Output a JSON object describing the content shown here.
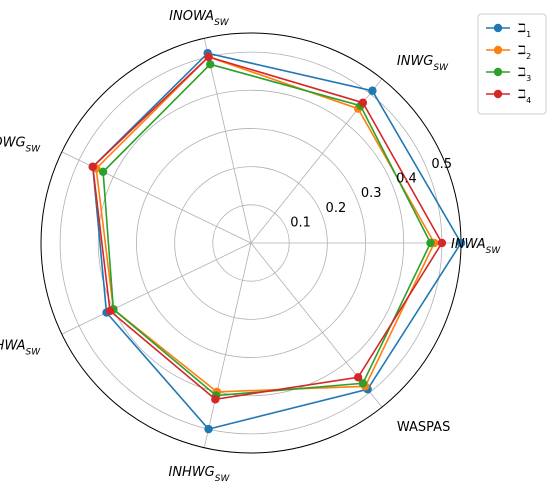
{
  "chart_data": {
    "type": "radar",
    "rmax": 0.55,
    "radial_ticks": [
      0.1,
      0.2,
      0.3,
      0.4,
      0.5
    ],
    "radial_tick_labels": [
      "0.1",
      "0.2",
      "0.3",
      "0.4",
      "0.5"
    ],
    "axes": [
      {
        "base": "INWA",
        "sub": "SW"
      },
      {
        "base": "INWG",
        "sub": "SW"
      },
      {
        "base": "INOWA",
        "sub": "SW"
      },
      {
        "base": "INOWG",
        "sub": "SW"
      },
      {
        "base": "INHWA",
        "sub": "SW"
      },
      {
        "base": "INHWG",
        "sub": "SW"
      },
      {
        "base": "WASPAS",
        "sub": ""
      }
    ],
    "series": [
      {
        "name": "ℶ",
        "sub": "1",
        "color": "#1f77b4",
        "values": [
          0.55,
          0.51,
          0.51,
          0.46,
          0.42,
          0.5,
          0.49
        ]
      },
      {
        "name": "ℶ",
        "sub": "2",
        "color": "#ff7f0e",
        "values": [
          0.48,
          0.45,
          0.5,
          0.45,
          0.4,
          0.4,
          0.48
        ]
      },
      {
        "name": "ℶ",
        "sub": "3",
        "color": "#2ca02c",
        "values": [
          0.47,
          0.46,
          0.48,
          0.43,
          0.4,
          0.41,
          0.47
        ]
      },
      {
        "name": "ℶ",
        "sub": "4",
        "color": "#d62728",
        "values": [
          0.5,
          0.47,
          0.5,
          0.46,
          0.41,
          0.42,
          0.45
        ]
      }
    ],
    "grid": true,
    "legend_position": "top-right"
  }
}
